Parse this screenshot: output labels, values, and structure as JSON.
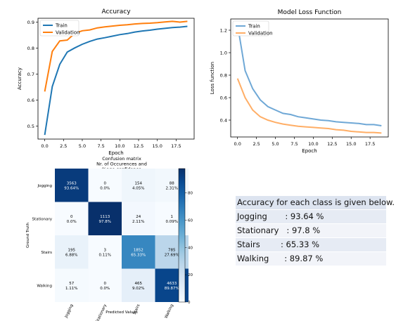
{
  "chart_data": [
    {
      "id": "accuracy",
      "type": "line",
      "title": "Accuracy",
      "xlabel": "Epoch",
      "ylabel": "Accuracy",
      "xlim": [
        -0.9,
        19.9
      ],
      "ylim": [
        0.45,
        0.915
      ],
      "xticks": [
        0.0,
        2.5,
        5.0,
        7.5,
        10.0,
        12.5,
        15.0,
        17.5
      ],
      "yticks": [
        0.5,
        0.6,
        0.7,
        0.8,
        0.9
      ],
      "tick_format": 1,
      "legend_position": "top-left",
      "grid": false,
      "x": [
        0,
        1,
        2,
        3,
        4,
        5,
        6,
        7,
        8,
        9,
        10,
        11,
        12,
        13,
        14,
        15,
        16,
        17,
        18,
        19
      ],
      "series": [
        {
          "name": "Train",
          "color": "#1f77b4",
          "values": [
            0.466,
            0.652,
            0.738,
            0.785,
            0.801,
            0.815,
            0.826,
            0.835,
            0.84,
            0.846,
            0.852,
            0.856,
            0.862,
            0.866,
            0.869,
            0.873,
            0.876,
            0.879,
            0.881,
            0.884
          ]
        },
        {
          "name": "Validation",
          "color": "#ff7f0e",
          "values": [
            0.633,
            0.787,
            0.828,
            0.831,
            0.857,
            0.867,
            0.87,
            0.878,
            0.882,
            0.885,
            0.888,
            0.89,
            0.893,
            0.895,
            0.896,
            0.898,
            0.901,
            0.903,
            0.9,
            0.903
          ]
        }
      ]
    },
    {
      "id": "loss",
      "type": "line",
      "title": "Model Loss Function",
      "xlabel": "Epoch",
      "ylabel": "Loss function",
      "xlim": [
        -0.9,
        19.9
      ],
      "ylim": [
        0.25,
        1.3
      ],
      "xticks": [
        0.0,
        2.5,
        5.0,
        7.5,
        10.0,
        12.5,
        15.0,
        17.5
      ],
      "yticks": [
        0.4,
        0.6,
        0.8,
        1.0,
        1.2
      ],
      "tick_format": 1,
      "legend_position": "top-left",
      "grid": false,
      "x": [
        0,
        1,
        2,
        3,
        4,
        5,
        6,
        7,
        8,
        9,
        10,
        11,
        12,
        13,
        14,
        15,
        16,
        17,
        18,
        19
      ],
      "series": [
        {
          "name": "Train",
          "color": "#6fa8d6",
          "values": [
            1.25,
            0.84,
            0.68,
            0.58,
            0.52,
            0.49,
            0.46,
            0.45,
            0.43,
            0.42,
            0.41,
            0.4,
            0.395,
            0.385,
            0.38,
            0.375,
            0.37,
            0.36,
            0.36,
            0.35
          ]
        },
        {
          "name": "Validation",
          "color": "#ffae66",
          "values": [
            0.77,
            0.6,
            0.49,
            0.43,
            0.4,
            0.38,
            0.365,
            0.355,
            0.345,
            0.34,
            0.335,
            0.33,
            0.325,
            0.315,
            0.31,
            0.3,
            0.295,
            0.29,
            0.29,
            0.285
          ]
        }
      ]
    },
    {
      "id": "confusion",
      "type": "heatmap",
      "title_lines": [
        "Confusion matrix",
        "Nr. of Occurences and",
        "%age confidence"
      ],
      "xlabel": "Predicted Values",
      "ylabel": "Ground Truth",
      "labels": [
        "Jogging",
        "Stationary",
        "Stairs",
        "Walking"
      ],
      "counts": [
        [
          3563,
          0,
          154,
          88
        ],
        [
          0,
          1113,
          24,
          1
        ],
        [
          195,
          3,
          1852,
          785
        ],
        [
          57,
          0,
          465,
          4633
        ]
      ],
      "percent_labels": [
        [
          "93.64%",
          "0.0%",
          "4.05%",
          "2.31%"
        ],
        [
          "0.0%",
          "97.8%",
          "2.11%",
          "0.09%"
        ],
        [
          "6.88%",
          "0.11%",
          "65.33%",
          "27.69%"
        ],
        [
          "1.11%",
          "0.0%",
          "9.02%",
          "89.87%"
        ]
      ],
      "percent_values": [
        [
          93.64,
          0.0,
          4.05,
          2.31
        ],
        [
          0.0,
          97.8,
          2.11,
          0.09
        ],
        [
          6.88,
          0.11,
          65.33,
          27.69
        ],
        [
          1.11,
          0.0,
          9.02,
          89.87
        ]
      ],
      "colorbar_ticks": [
        0,
        20,
        40,
        60,
        80
      ],
      "colorbar_range": [
        0,
        97.8
      ],
      "colormap": "Blues"
    }
  ],
  "summary": {
    "heading": "Accuracy for each class is given below.",
    "rows": [
      "Jogging       : 93.64 %",
      "Stationary   : 97.8 %",
      "Stairs        : 65.33 %",
      "Walking      : 89.87 %"
    ]
  }
}
